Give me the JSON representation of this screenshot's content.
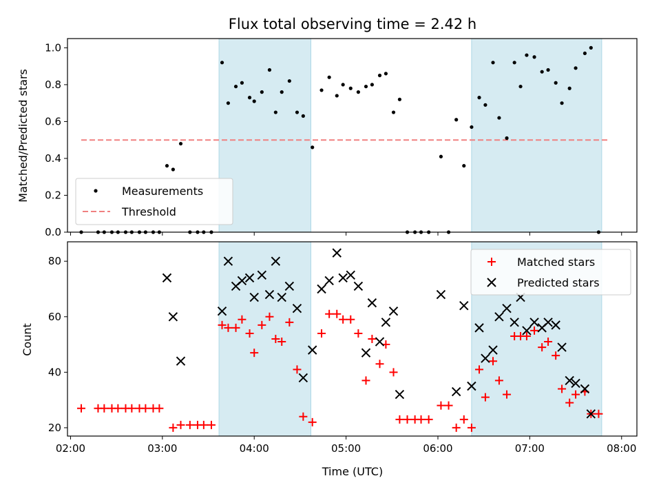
{
  "chart_data": [
    {
      "type": "scatter",
      "title": "Flux total observing time = 2.42 h",
      "xlabel": "",
      "ylabel": "Matched/Predicted stars",
      "xlim": [
        "01:58",
        "08:10"
      ],
      "ylim": [
        0,
        1.05
      ],
      "yticks": [
        "0.0",
        "0.2",
        "0.4",
        "0.6",
        "0.8",
        "1.0"
      ],
      "xticks": [
        "02:00",
        "03:00",
        "04:00",
        "05:00",
        "06:00",
        "07:00",
        "08:00"
      ],
      "shaded_intervals": [
        [
          "03:37",
          "04:37"
        ],
        [
          "06:22",
          "07:47"
        ]
      ],
      "threshold": {
        "name": "Threshold",
        "value": 0.5,
        "from": "02:07",
        "to": "07:52",
        "color": "#f08080"
      },
      "legend": {
        "placement": "lower-left",
        "entries": [
          "Measurements",
          "Threshold"
        ]
      },
      "series": [
        {
          "name": "Measurements",
          "color": "#000000",
          "points": [
            [
              "02:07",
              0.0
            ],
            [
              "02:18",
              0.0
            ],
            [
              "02:22",
              0.0
            ],
            [
              "02:27",
              0.0
            ],
            [
              "02:31",
              0.0
            ],
            [
              "02:36",
              0.0
            ],
            [
              "02:40",
              0.0
            ],
            [
              "02:45",
              0.0
            ],
            [
              "02:49",
              0.0
            ],
            [
              "02:54",
              0.0
            ],
            [
              "02:58",
              0.0
            ],
            [
              "03:03",
              0.36
            ],
            [
              "03:07",
              0.34
            ],
            [
              "03:12",
              0.48
            ],
            [
              "03:18",
              0.0
            ],
            [
              "03:23",
              0.0
            ],
            [
              "03:27",
              0.0
            ],
            [
              "03:32",
              0.0
            ],
            [
              "03:39",
              0.92
            ],
            [
              "03:43",
              0.7
            ],
            [
              "03:48",
              0.79
            ],
            [
              "03:52",
              0.81
            ],
            [
              "03:57",
              0.73
            ],
            [
              "04:00",
              0.71
            ],
            [
              "04:05",
              0.76
            ],
            [
              "04:10",
              0.88
            ],
            [
              "04:14",
              0.65
            ],
            [
              "04:18",
              0.76
            ],
            [
              "04:23",
              0.82
            ],
            [
              "04:28",
              0.65
            ],
            [
              "04:32",
              0.63
            ],
            [
              "04:38",
              0.46
            ],
            [
              "04:44",
              0.77
            ],
            [
              "04:49",
              0.84
            ],
            [
              "04:54",
              0.74
            ],
            [
              "04:58",
              0.8
            ],
            [
              "05:03",
              0.78
            ],
            [
              "05:08",
              0.76
            ],
            [
              "05:13",
              0.79
            ],
            [
              "05:17",
              0.8
            ],
            [
              "05:22",
              0.85
            ],
            [
              "05:26",
              0.86
            ],
            [
              "05:31",
              0.65
            ],
            [
              "05:35",
              0.72
            ],
            [
              "05:40",
              0.0
            ],
            [
              "05:45",
              0.0
            ],
            [
              "05:49",
              0.0
            ],
            [
              "05:54",
              0.0
            ],
            [
              "06:02",
              0.41
            ],
            [
              "06:07",
              0.0
            ],
            [
              "06:12",
              0.61
            ],
            [
              "06:17",
              0.36
            ],
            [
              "06:22",
              0.57
            ],
            [
              "06:27",
              0.73
            ],
            [
              "06:31",
              0.69
            ],
            [
              "06:36",
              0.92
            ],
            [
              "06:40",
              0.62
            ],
            [
              "06:45",
              0.51
            ],
            [
              "06:50",
              0.92
            ],
            [
              "06:54",
              0.79
            ],
            [
              "06:58",
              0.96
            ],
            [
              "07:03",
              0.95
            ],
            [
              "07:08",
              0.87
            ],
            [
              "07:12",
              0.88
            ],
            [
              "07:17",
              0.81
            ],
            [
              "07:21",
              0.7
            ],
            [
              "07:26",
              0.78
            ],
            [
              "07:30",
              0.89
            ],
            [
              "07:36",
              0.97
            ],
            [
              "07:40",
              1.0
            ],
            [
              "07:45",
              0.0
            ]
          ]
        }
      ]
    },
    {
      "type": "scatter",
      "title": "",
      "xlabel": "Time (UTC)",
      "ylabel": "Count",
      "xlim": [
        "01:58",
        "08:10"
      ],
      "ylim": [
        17,
        87
      ],
      "yticks": [
        "20",
        "40",
        "60",
        "80"
      ],
      "xticks": [
        "02:00",
        "03:00",
        "04:00",
        "05:00",
        "06:00",
        "07:00",
        "08:00"
      ],
      "shaded_intervals": [
        [
          "03:37",
          "04:37"
        ],
        [
          "06:22",
          "07:47"
        ]
      ],
      "legend": {
        "placement": "top-right",
        "entries": [
          "Matched stars",
          "Predicted stars"
        ]
      },
      "series": [
        {
          "name": "Matched stars",
          "marker": "plus",
          "color": "#ff0000",
          "points": [
            [
              "02:07",
              27
            ],
            [
              "02:18",
              27
            ],
            [
              "02:22",
              27
            ],
            [
              "02:27",
              27
            ],
            [
              "02:31",
              27
            ],
            [
              "02:36",
              27
            ],
            [
              "02:40",
              27
            ],
            [
              "02:45",
              27
            ],
            [
              "02:49",
              27
            ],
            [
              "02:54",
              27
            ],
            [
              "02:58",
              27
            ],
            [
              "03:07",
              20
            ],
            [
              "03:12",
              21
            ],
            [
              "03:18",
              21
            ],
            [
              "03:23",
              21
            ],
            [
              "03:27",
              21
            ],
            [
              "03:32",
              21
            ],
            [
              "03:39",
              57
            ],
            [
              "03:43",
              56
            ],
            [
              "03:48",
              56
            ],
            [
              "03:52",
              59
            ],
            [
              "03:57",
              54
            ],
            [
              "04:00",
              47
            ],
            [
              "04:05",
              57
            ],
            [
              "04:10",
              60
            ],
            [
              "04:14",
              52
            ],
            [
              "04:18",
              51
            ],
            [
              "04:23",
              58
            ],
            [
              "04:28",
              41
            ],
            [
              "04:32",
              24
            ],
            [
              "04:38",
              22
            ],
            [
              "04:44",
              54
            ],
            [
              "04:49",
              61
            ],
            [
              "04:54",
              61
            ],
            [
              "04:58",
              59
            ],
            [
              "05:03",
              59
            ],
            [
              "05:08",
              54
            ],
            [
              "05:13",
              37
            ],
            [
              "05:17",
              52
            ],
            [
              "05:22",
              43
            ],
            [
              "05:26",
              50
            ],
            [
              "05:31",
              40
            ],
            [
              "05:35",
              23
            ],
            [
              "05:40",
              23
            ],
            [
              "05:45",
              23
            ],
            [
              "05:49",
              23
            ],
            [
              "05:54",
              23
            ],
            [
              "06:02",
              28
            ],
            [
              "06:07",
              28
            ],
            [
              "06:12",
              20
            ],
            [
              "06:17",
              23
            ],
            [
              "06:22",
              20
            ],
            [
              "06:27",
              41
            ],
            [
              "06:31",
              31
            ],
            [
              "06:36",
              44
            ],
            [
              "06:40",
              37
            ],
            [
              "06:45",
              32
            ],
            [
              "06:50",
              53
            ],
            [
              "06:54",
              53
            ],
            [
              "06:58",
              53
            ],
            [
              "07:03",
              55
            ],
            [
              "07:08",
              49
            ],
            [
              "07:12",
              51
            ],
            [
              "07:17",
              46
            ],
            [
              "07:21",
              34
            ],
            [
              "07:26",
              29
            ],
            [
              "07:30",
              32
            ],
            [
              "07:36",
              33
            ],
            [
              "07:40",
              25
            ],
            [
              "07:45",
              25
            ]
          ]
        },
        {
          "name": "Predicted stars",
          "marker": "x",
          "color": "#000000",
          "points": [
            [
              "03:03",
              74
            ],
            [
              "03:07",
              60
            ],
            [
              "03:12",
              44
            ],
            [
              "03:39",
              62
            ],
            [
              "03:43",
              80
            ],
            [
              "03:48",
              71
            ],
            [
              "03:52",
              73
            ],
            [
              "03:57",
              74
            ],
            [
              "04:00",
              67
            ],
            [
              "04:05",
              75
            ],
            [
              "04:10",
              68
            ],
            [
              "04:14",
              80
            ],
            [
              "04:18",
              67
            ],
            [
              "04:23",
              71
            ],
            [
              "04:28",
              63
            ],
            [
              "04:32",
              38
            ],
            [
              "04:38",
              48
            ],
            [
              "04:44",
              70
            ],
            [
              "04:49",
              73
            ],
            [
              "04:54",
              83
            ],
            [
              "04:58",
              74
            ],
            [
              "05:03",
              75
            ],
            [
              "05:08",
              71
            ],
            [
              "05:13",
              47
            ],
            [
              "05:17",
              65
            ],
            [
              "05:22",
              51
            ],
            [
              "05:26",
              58
            ],
            [
              "05:31",
              62
            ],
            [
              "05:35",
              32
            ],
            [
              "06:02",
              68
            ],
            [
              "06:12",
              33
            ],
            [
              "06:17",
              64
            ],
            [
              "06:22",
              35
            ],
            [
              "06:27",
              56
            ],
            [
              "06:31",
              45
            ],
            [
              "06:36",
              48
            ],
            [
              "06:40",
              60
            ],
            [
              "06:45",
              63
            ],
            [
              "06:50",
              58
            ],
            [
              "06:54",
              67
            ],
            [
              "06:58",
              55
            ],
            [
              "07:03",
              58
            ],
            [
              "07:08",
              56
            ],
            [
              "07:12",
              58
            ],
            [
              "07:17",
              57
            ],
            [
              "07:21",
              49
            ],
            [
              "07:26",
              37
            ],
            [
              "07:30",
              36
            ],
            [
              "07:36",
              34
            ],
            [
              "07:40",
              25
            ]
          ]
        }
      ]
    }
  ]
}
